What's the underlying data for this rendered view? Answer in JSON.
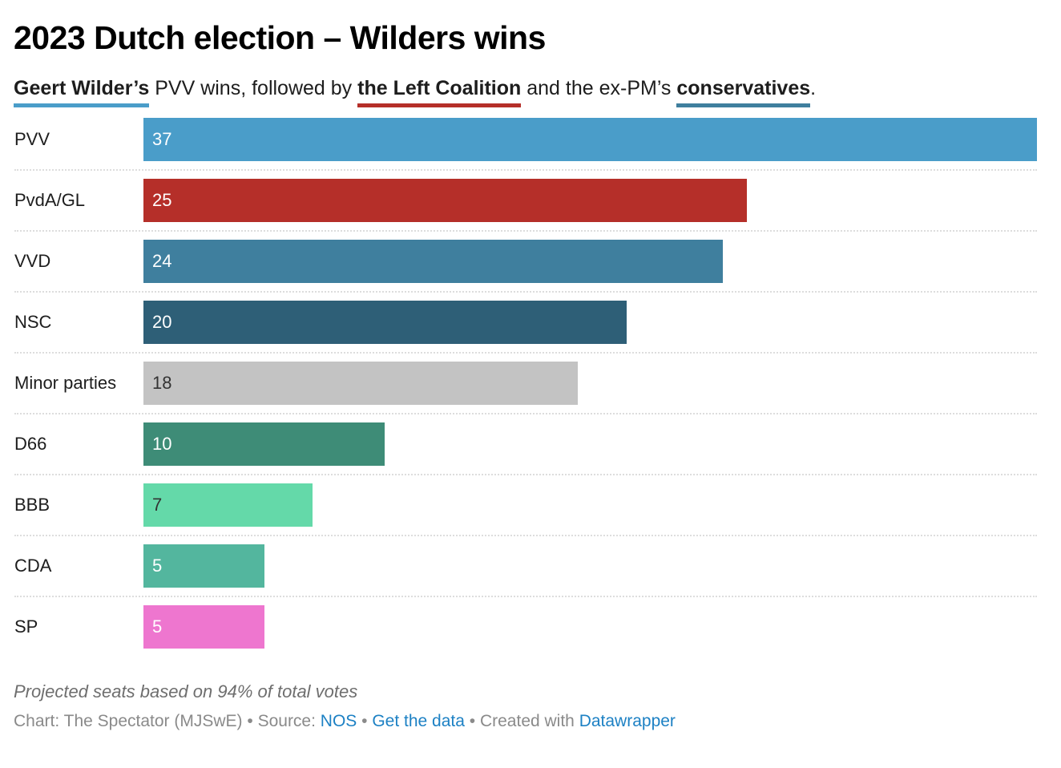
{
  "header": {
    "title": "2023 Dutch election – Wilders wins",
    "subtitle": {
      "part1_highlight": "Geert Wilder’s",
      "part1_color": "#4a9dc9",
      "part2": " PVV wins, followed by ",
      "part3_highlight": "the Left Coalition",
      "part3_color": "#b52f29",
      "part4": " and the ex-PM’s ",
      "part5_highlight": "conservatives",
      "part5_color": "#3f7f9e",
      "part6": "."
    }
  },
  "chart_data": {
    "type": "bar",
    "orientation": "horizontal",
    "title": "2023 Dutch election – Wilders wins",
    "subtitle": "Geert Wilder’s PVV wins, followed by the Left Coalition and the ex-PM’s conservatives.",
    "xlabel": "",
    "ylabel": "",
    "xlim": [
      0,
      37
    ],
    "grid": false,
    "value_labels": true,
    "categories": [
      "PVV",
      "PvdA/GL",
      "VVD",
      "NSC",
      "Minor parties",
      "D66",
      "BBB",
      "CDA",
      "SP"
    ],
    "values": [
      37,
      25,
      24,
      20,
      18,
      10,
      7,
      5,
      5
    ],
    "colors": [
      "#4a9dc9",
      "#b52f29",
      "#3f7f9e",
      "#2e5f77",
      "#c3c3c3",
      "#3e8c77",
      "#64d9a9",
      "#53b69e",
      "#ee76cf"
    ],
    "label_colors": [
      "#ffffff",
      "#ffffff",
      "#ffffff",
      "#ffffff",
      "#333333",
      "#ffffff",
      "#333333",
      "#ffffff",
      "#ffffff"
    ]
  },
  "footer": {
    "notes": "Projected seats based on 94% of total votes",
    "chart_credit": "Chart: The Spectator (MJSwE)",
    "sep": " • ",
    "source_label": "Source: ",
    "source_link": "NOS",
    "get_data_link": "Get the data",
    "created_label": "Created with ",
    "datawrapper_link": "Datawrapper"
  }
}
